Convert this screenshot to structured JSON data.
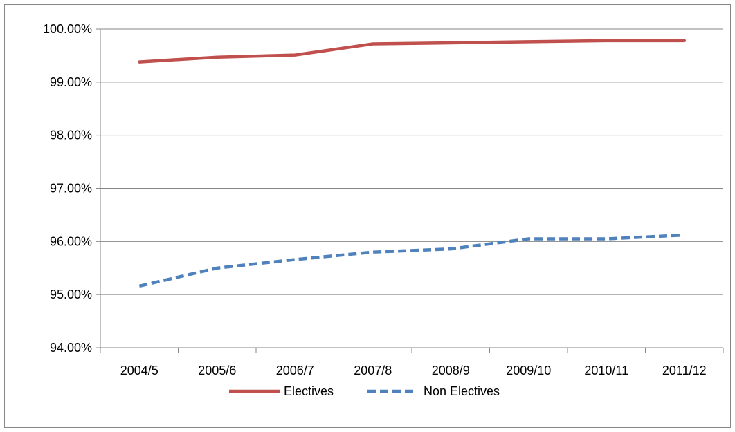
{
  "chart_data": {
    "type": "line",
    "title": "",
    "xlabel": "",
    "ylabel": "",
    "categories": [
      "2004/5",
      "2005/6",
      "2006/7",
      "2007/8",
      "2008/9",
      "2009/10",
      "2010/11",
      "2011/12"
    ],
    "y_ticks": [
      "94.00%",
      "95.00%",
      "96.00%",
      "97.00%",
      "98.00%",
      "99.00%",
      "100.00%"
    ],
    "ylim": [
      94,
      100
    ],
    "grid": true,
    "legend_position": "bottom",
    "series": [
      {
        "name": "Electives",
        "values": [
          99.38,
          99.47,
          99.51,
          99.72,
          99.74,
          99.76,
          99.78,
          99.78
        ],
        "color": "#c0504d",
        "style": "solid"
      },
      {
        "name": "Non Electives",
        "values": [
          95.16,
          95.5,
          95.66,
          95.8,
          95.86,
          96.05,
          96.05,
          96.12
        ],
        "color": "#4f81bd",
        "style": "dashed"
      }
    ]
  }
}
